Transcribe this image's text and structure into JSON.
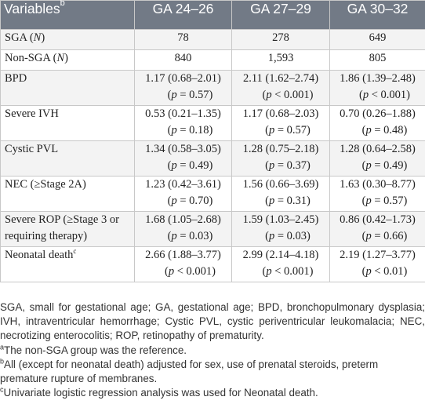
{
  "table": {
    "header": {
      "variables": "Variables",
      "variables_marker": "b",
      "columns": [
        "GA 24–26",
        "GA 27–29",
        "GA 30–32"
      ]
    },
    "rows": [
      {
        "label": "SGA (",
        "label_italic": "N",
        "label_end": ")",
        "values": [
          "78",
          "278",
          "649"
        ]
      },
      {
        "label": "Non-SGA (",
        "label_italic": "N",
        "label_end": ")",
        "values": [
          "840",
          "1,593",
          "805"
        ]
      },
      {
        "label": "BPD",
        "values": [
          "1.17 (0.68–2.01)",
          "2.11 (1.62–2.74)",
          "1.86 (1.39–2.48)"
        ],
        "p": [
          "= 0.57)",
          "< 0.001)",
          "< 0.001)"
        ]
      },
      {
        "label": "Severe IVH",
        "values": [
          "0.53 (0.21–1.35)",
          "1.17 (0.68–2.03)",
          "0.70 (0.26–1.88)"
        ],
        "p": [
          "= 0.18)",
          "= 0.57)",
          "= 0.48)"
        ]
      },
      {
        "label": "Cystic PVL",
        "values": [
          "1.34 (0.58–3.05)",
          "1.28 (0.75–2.18)",
          "1.28 (0.64–2.58)"
        ],
        "p": [
          "= 0.49)",
          "= 0.37)",
          "= 0.49)"
        ]
      },
      {
        "label": "NEC (≥Stage 2A)",
        "values": [
          "1.23 (0.42–3.61)",
          "1.56 (0.66–3.69)",
          "1.63 (0.30–8.77)"
        ],
        "p": [
          "= 0.70)",
          "= 0.31)",
          "= 0.57)"
        ]
      },
      {
        "label": "Severe ROP (≥Stage 3 or",
        "label2": "requiring therapy)",
        "values": [
          "1.68 (1.05–2.68)",
          "1.59 (1.03–2.45)",
          "0.86 (0.42–1.73)"
        ],
        "p": [
          "= 0.03)",
          "= 0.03)",
          "= 0.66)"
        ]
      },
      {
        "label": "Neonatal death",
        "label_marker": "c",
        "values": [
          "2.66 (1.88–3.77)",
          "2.99 (2.14–4.18)",
          "2.19 (1.27–3.77)"
        ],
        "p": [
          "< 0.001)",
          "< 0.001)",
          "< 0.01)"
        ]
      }
    ],
    "p_prefix": "(",
    "p_symbol": "p"
  },
  "footnotes": {
    "abbreviations": "SGA, small for gestational age; GA, gestational age; BPD, bronchopulmonary dysplasia; IVH, intraventricular hemorrhage; Cystic PVL, cystic periventricular leukomalacia; NEC, necrotizing enterocolitis; ROP, retinopathy of prematurity.",
    "a_marker": "a",
    "a_text": "The non-SGA group was the reference.",
    "b_marker": "b",
    "b_text": "All (except for neonatal death) adjusted for sex, use of prenatal steroids, preterm premature rupture of membranes.",
    "c_marker": "c",
    "c_text": "Univariate logistic regression analysis was used for Neonatal death."
  },
  "colors": {
    "header_bg": "#727a86",
    "shade_row": "#f3f3f3",
    "border": "#c8c8c8"
  }
}
